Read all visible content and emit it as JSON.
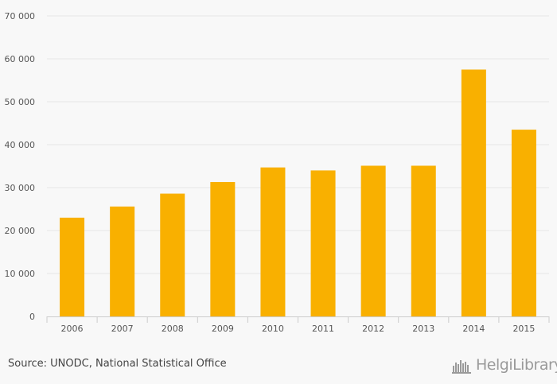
{
  "chart_data": {
    "type": "bar",
    "title": "",
    "xlabel": "",
    "ylabel": "",
    "categories": [
      "2006",
      "2007",
      "2008",
      "2009",
      "2010",
      "2011",
      "2012",
      "2013",
      "2014",
      "2015"
    ],
    "values": [
      23000,
      25600,
      28600,
      31300,
      34700,
      34000,
      35100,
      35100,
      57500,
      43500
    ],
    "ylim": [
      0,
      70000
    ],
    "yticks": [
      0,
      10000,
      20000,
      30000,
      40000,
      50000,
      60000,
      70000
    ],
    "ytick_labels": [
      "0",
      "10 000",
      "20 000",
      "30 000",
      "40 000",
      "50 000",
      "60 000",
      "70 000"
    ],
    "grid": true,
    "bar_color": "#f9b000"
  },
  "footer": {
    "source": "Source: UNODC, National Statistical Office",
    "brand_text": "HelgiLibrary",
    "brand_icon": "helgi-library-logo-icon"
  }
}
